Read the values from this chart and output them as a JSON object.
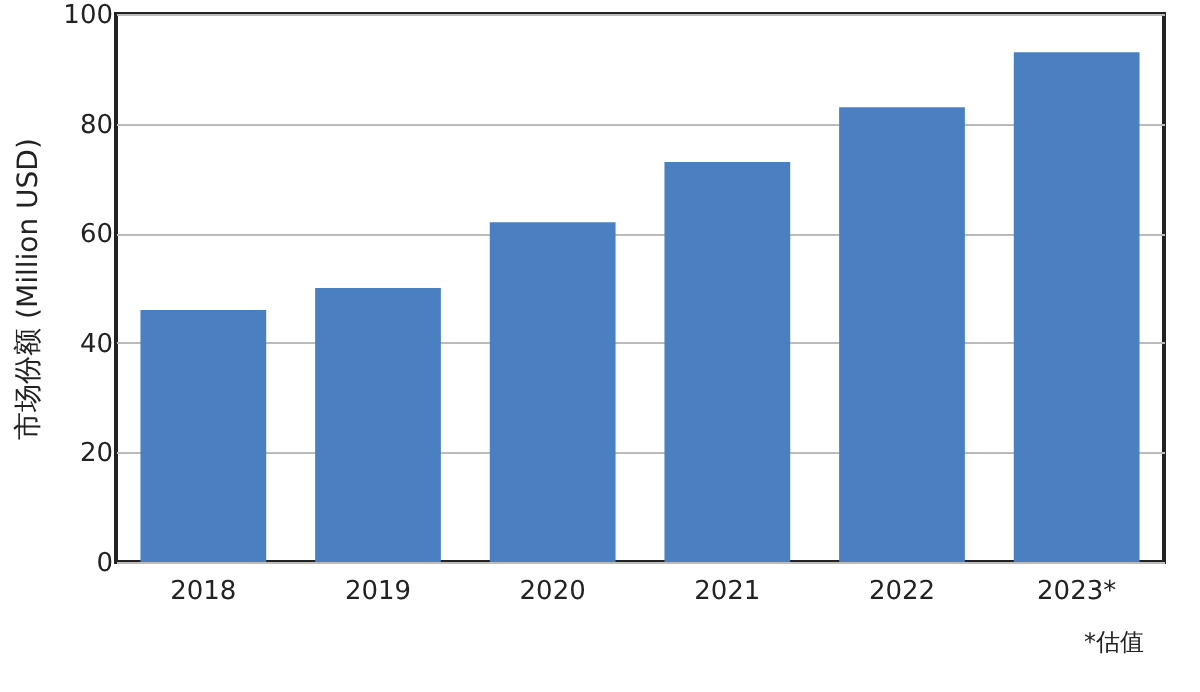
{
  "chart_data": {
    "type": "bar",
    "ylabel": "市场份额 (Million USD)",
    "categories": [
      "2018",
      "2019",
      "2020",
      "2021",
      "2022",
      "2023*"
    ],
    "values": [
      46,
      50,
      62,
      73,
      83,
      93
    ],
    "color": "#4a7fc1",
    "ylim": [
      0,
      100
    ],
    "yticks": [
      0,
      20,
      40,
      60,
      80,
      100
    ],
    "grid": "y",
    "annotations": [
      "*估值"
    ]
  }
}
